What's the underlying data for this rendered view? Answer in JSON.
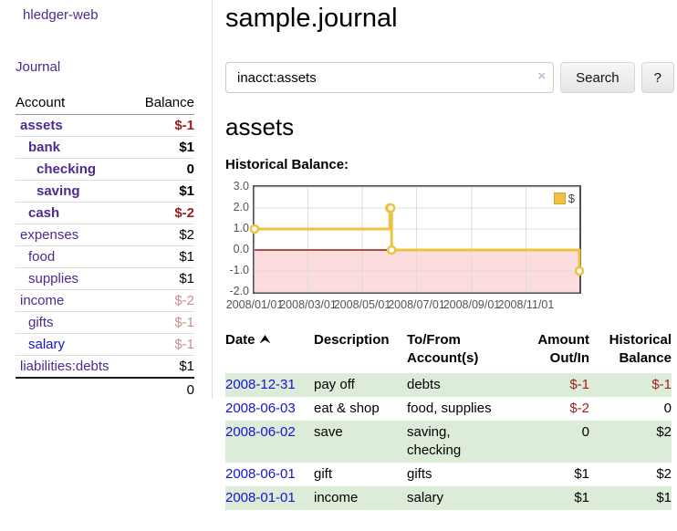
{
  "colors": {
    "accent_purple": "#4e2a8e",
    "link_blue": "#1414cc",
    "negative_red": "#9c1f1f",
    "negative_faded_red": "#c98f8f",
    "row_green": "#ddecd9",
    "chart_line_gold": "#edc240",
    "chart_negative_fill": "#fcdcdc",
    "chart_zero_line": "#911c1c"
  },
  "sidebar": {
    "brand": "hledger-web",
    "nav": {
      "journal": "Journal"
    },
    "accounts_table": {
      "headers": {
        "account": "Account",
        "balance": "Balance"
      },
      "rows": [
        {
          "name": "assets",
          "balance": "$-1",
          "level": 1,
          "in_query": true,
          "balance_tone": "negative-strong"
        },
        {
          "name": "bank",
          "balance": "$1",
          "level": 2,
          "in_query": true,
          "balance_tone": "positive"
        },
        {
          "name": "checking",
          "balance": "0",
          "level": 3,
          "in_query": true,
          "balance_tone": "positive"
        },
        {
          "name": "saving",
          "balance": "$1",
          "level": 3,
          "in_query": true,
          "balance_tone": "positive"
        },
        {
          "name": "cash",
          "balance": "$-2",
          "level": 2,
          "in_query": true,
          "balance_tone": "negative-strong"
        },
        {
          "name": "expenses",
          "balance": "$2",
          "level": 1,
          "in_query": false,
          "balance_tone": "positive"
        },
        {
          "name": "food",
          "balance": "$1",
          "level": 2,
          "in_query": false,
          "balance_tone": "positive"
        },
        {
          "name": "supplies",
          "balance": "$1",
          "level": 2,
          "in_query": false,
          "balance_tone": "positive"
        },
        {
          "name": "income",
          "balance": "$-2",
          "level": 1,
          "in_query": false,
          "balance_tone": "negative-faded"
        },
        {
          "name": "gifts",
          "balance": "$-1",
          "level": 2,
          "in_query": false,
          "balance_tone": "negative-faded"
        },
        {
          "name": "salary",
          "balance": "$-1",
          "level": 2,
          "in_query": false,
          "balance_tone": "negative-faded",
          "link_tone": "blue"
        },
        {
          "name": "liabilities:debts",
          "balance": "$1",
          "level": 1,
          "in_query": false,
          "balance_tone": "positive"
        }
      ],
      "total": "0"
    }
  },
  "header": {
    "title": "sample.journal"
  },
  "search": {
    "value": "inacct:assets",
    "clear_icon": "×",
    "search_button": "Search",
    "help_button": "?"
  },
  "account_view": {
    "heading": "assets",
    "chart_title": "Historical Balance:"
  },
  "chart_data": {
    "type": "line",
    "title": "Historical Balance",
    "line_style": "steps",
    "series": [
      {
        "name": "$",
        "color": "#edc240",
        "points": [
          {
            "date": "2008-01-01",
            "value": 1
          },
          {
            "date": "2008-06-01",
            "value": 2
          },
          {
            "date": "2008-06-02",
            "value": 2
          },
          {
            "date": "2008-06-03",
            "value": 0
          },
          {
            "date": "2008-12-31",
            "value": -1
          }
        ]
      }
    ],
    "x_ticks": [
      "2008/01/01",
      "2008/03/01",
      "2008/05/01",
      "2008/07/01",
      "2008/09/01",
      "2008/11/01"
    ],
    "y_ticks": [
      3.0,
      2.0,
      1.0,
      0.0,
      -1.0,
      -2.0
    ],
    "ylim": [
      -2,
      3
    ],
    "grid": true,
    "legend": {
      "label": "$",
      "position": "top-right"
    }
  },
  "register_table": {
    "columns": {
      "date": {
        "label": "Date",
        "sorted": "asc"
      },
      "description": {
        "label": "Description"
      },
      "accounts": {
        "line1": "To/From",
        "line2": "Account(s)"
      },
      "amount": {
        "line1": "Amount",
        "line2": "Out/In"
      },
      "balance": {
        "line1": "Historical",
        "line2": "Balance"
      }
    },
    "rows": [
      {
        "date": "2008-12-31",
        "description": "pay off",
        "accounts": "debts",
        "amount": "$-1",
        "balance": "$-1",
        "amount_negative": true,
        "balance_negative": true
      },
      {
        "date": "2008-06-03",
        "description": "eat & shop",
        "accounts": "food, supplies",
        "amount": "$-2",
        "balance": "0",
        "amount_negative": true,
        "balance_negative": false
      },
      {
        "date": "2008-06-02",
        "description": "save",
        "accounts": "saving, checking",
        "amount": "0",
        "balance": "$2",
        "amount_negative": false,
        "balance_negative": false
      },
      {
        "date": "2008-06-01",
        "description": "gift",
        "accounts": "gifts",
        "amount": "$1",
        "balance": "$2",
        "amount_negative": false,
        "balance_negative": false
      },
      {
        "date": "2008-01-01",
        "description": "income",
        "accounts": "salary",
        "amount": "$1",
        "balance": "$1",
        "amount_negative": false,
        "balance_negative": false
      }
    ]
  }
}
